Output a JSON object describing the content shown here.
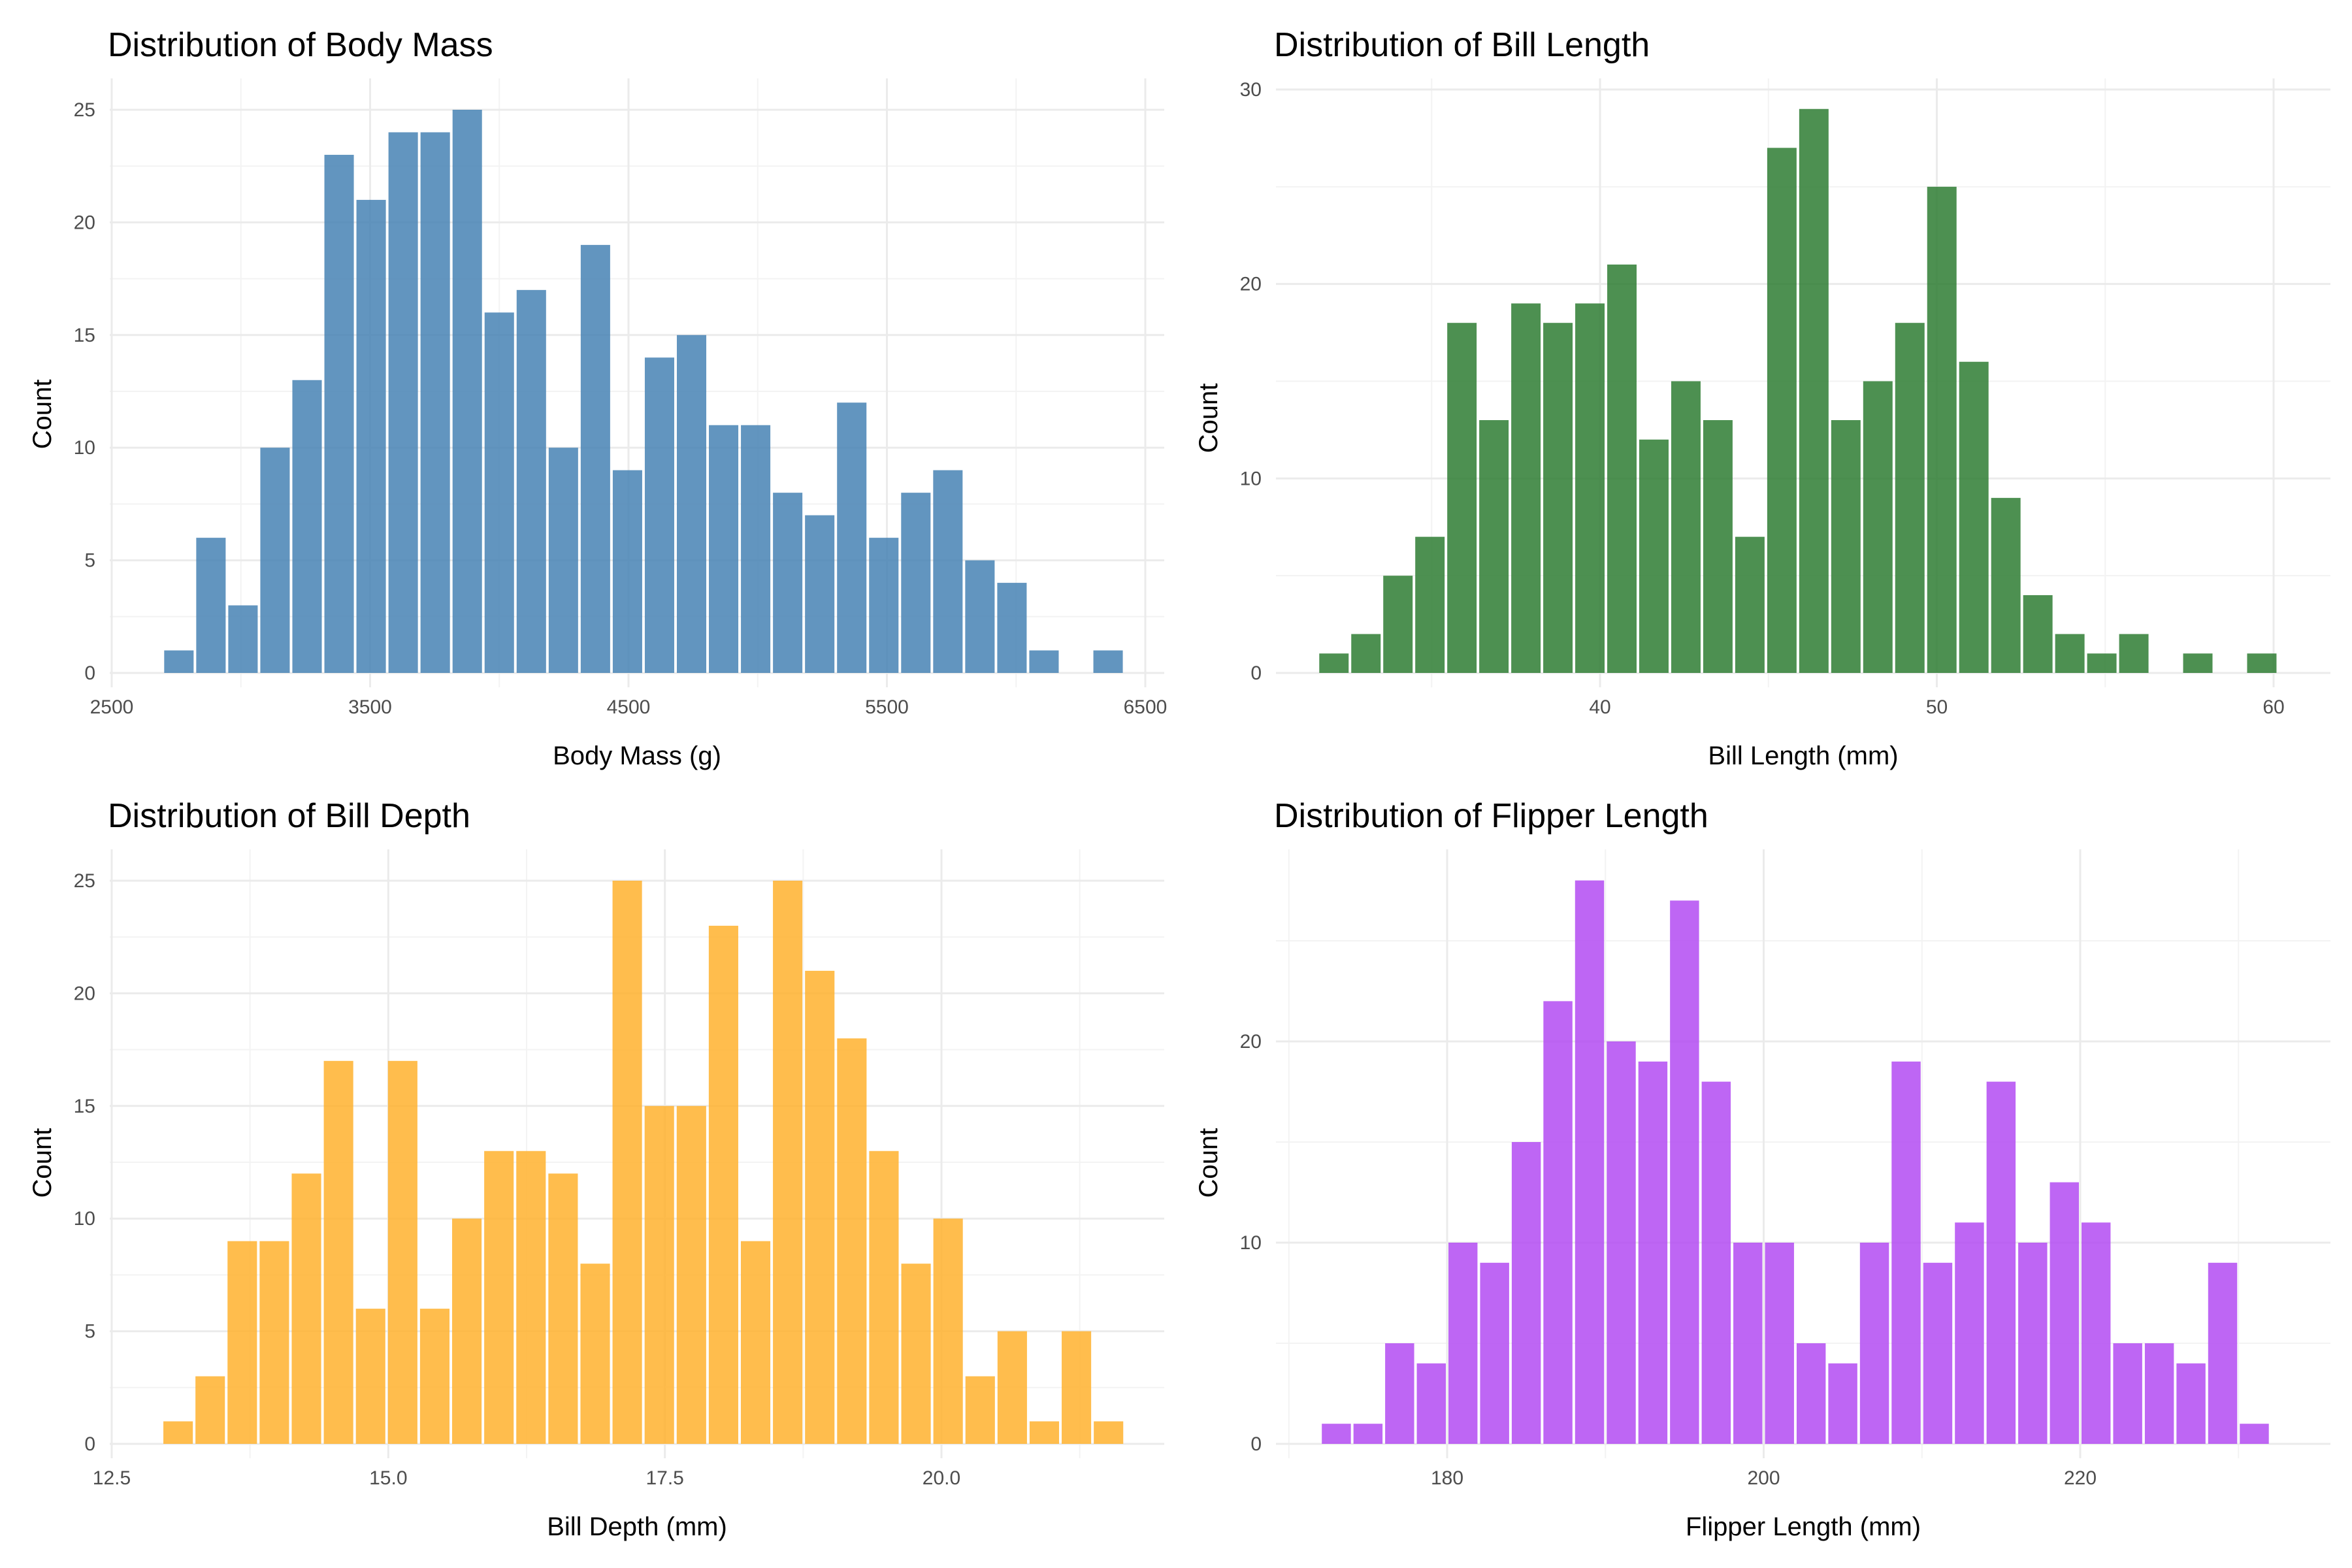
{
  "chart_data": [
    {
      "type": "bar",
      "title": "Distribution of Body Mass",
      "xlabel": "Body Mass (g)",
      "ylabel": "Count",
      "color": "#4682B4",
      "xlim": [
        2500,
        6500
      ],
      "ylim": [
        0,
        25
      ],
      "xticks": [
        2500,
        3500,
        4500,
        5500,
        6500
      ],
      "xtick_labels": [
        "2500",
        "3500",
        "4500",
        "5500",
        "6500"
      ],
      "yticks": [
        0,
        5,
        10,
        15,
        20,
        25
      ],
      "ytick_labels": [
        "0",
        "5",
        "10",
        "15",
        "20",
        "25"
      ],
      "bin_width": 124,
      "bin_centers": [
        2760,
        2884,
        3008,
        3132,
        3256,
        3380,
        3504,
        3628,
        3752,
        3876,
        4000,
        4124,
        4248,
        4372,
        4496,
        4620,
        4744,
        4868,
        4992,
        5116,
        5240,
        5364,
        5488,
        5612,
        5736,
        5860,
        5984,
        6108,
        6232,
        6356
      ],
      "values": [
        1,
        6,
        3,
        10,
        13,
        23,
        21,
        24,
        24,
        25,
        16,
        17,
        10,
        19,
        9,
        14,
        15,
        11,
        11,
        8,
        7,
        12,
        6,
        8,
        9,
        5,
        4,
        1,
        0,
        1
      ]
    },
    {
      "type": "bar",
      "title": "Distribution of Bill Length",
      "xlabel": "Bill Length (mm)",
      "ylabel": "Count",
      "color": "#2E7D32",
      "xlim": [
        31.0,
        61.0
      ],
      "ylim": [
        0,
        30
      ],
      "xticks": [
        40,
        50,
        60
      ],
      "xtick_labels": [
        "40",
        "50",
        "60"
      ],
      "yticks": [
        0,
        10,
        20,
        30
      ],
      "ytick_labels": [
        "0",
        "10",
        "20",
        "30"
      ],
      "bin_width": 0.95,
      "bin_centers": [
        32.1,
        33.05,
        34.0,
        34.95,
        35.9,
        36.85,
        37.8,
        38.75,
        39.7,
        40.65,
        41.6,
        42.55,
        43.5,
        44.45,
        45.4,
        46.35,
        47.3,
        48.25,
        49.2,
        50.15,
        51.1,
        52.05,
        53.0,
        53.95,
        54.9,
        55.85,
        56.8,
        57.75,
        58.7,
        59.65
      ],
      "values": [
        1,
        2,
        5,
        7,
        18,
        13,
        19,
        18,
        19,
        21,
        12,
        15,
        13,
        7,
        27,
        29,
        13,
        15,
        18,
        25,
        16,
        9,
        4,
        2,
        1,
        2,
        0,
        1,
        0,
        1
      ]
    },
    {
      "type": "bar",
      "title": "Distribution of Bill Depth",
      "xlabel": "Bill Depth (mm)",
      "ylabel": "Count",
      "color": "#FFB22E",
      "xlim": [
        12.5,
        21.6
      ],
      "ylim": [
        0,
        25
      ],
      "xticks": [
        12.5,
        15.0,
        17.5,
        20.0
      ],
      "xtick_labels": [
        "12.5",
        "15.0",
        "17.5",
        "20.0"
      ],
      "yticks": [
        0,
        5,
        10,
        15,
        20,
        25
      ],
      "ytick_labels": [
        "0",
        "5",
        "10",
        "15",
        "20",
        "25"
      ],
      "bin_width": 0.29,
      "bin_centers": [
        13.1,
        13.39,
        13.68,
        13.97,
        14.26,
        14.55,
        14.84,
        15.13,
        15.42,
        15.71,
        16.0,
        16.29,
        16.58,
        16.87,
        17.16,
        17.45,
        17.74,
        18.03,
        18.32,
        18.61,
        18.9,
        19.19,
        19.48,
        19.77,
        20.06,
        20.35,
        20.64,
        20.93,
        21.22,
        21.51
      ],
      "values": [
        1,
        3,
        9,
        9,
        12,
        17,
        6,
        17,
        6,
        10,
        13,
        13,
        12,
        8,
        25,
        15,
        15,
        23,
        9,
        25,
        21,
        18,
        13,
        8,
        10,
        3,
        5,
        1,
        5,
        1
      ]
    },
    {
      "type": "bar",
      "title": "Distribution of Flipper Length",
      "xlabel": "Flipper Length (mm)",
      "ylabel": "Count",
      "color": "#B34BF2",
      "xlim": [
        170.0,
        236.0
      ],
      "ylim": [
        0,
        28
      ],
      "xticks": [
        180,
        200,
        220
      ],
      "xtick_labels": [
        "180",
        "200",
        "220"
      ],
      "yticks": [
        0,
        10,
        20
      ],
      "ytick_labels": [
        "0",
        "10",
        "20"
      ],
      "bin_width": 2.0,
      "bin_centers": [
        173.0,
        175.0,
        177.0,
        179.0,
        181.0,
        183.0,
        185.0,
        187.0,
        189.0,
        191.0,
        193.0,
        195.0,
        197.0,
        199.0,
        201.0,
        203.0,
        205.0,
        207.0,
        209.0,
        211.0,
        213.0,
        215.0,
        217.0,
        219.0,
        221.0,
        223.0,
        225.0,
        227.0,
        229.0,
        231.0
      ],
      "values": [
        1,
        1,
        5,
        4,
        10,
        9,
        15,
        22,
        28,
        20,
        19,
        27,
        18,
        10,
        10,
        5,
        4,
        10,
        19,
        9,
        11,
        18,
        10,
        13,
        11,
        5,
        5,
        4,
        9,
        1
      ]
    }
  ]
}
